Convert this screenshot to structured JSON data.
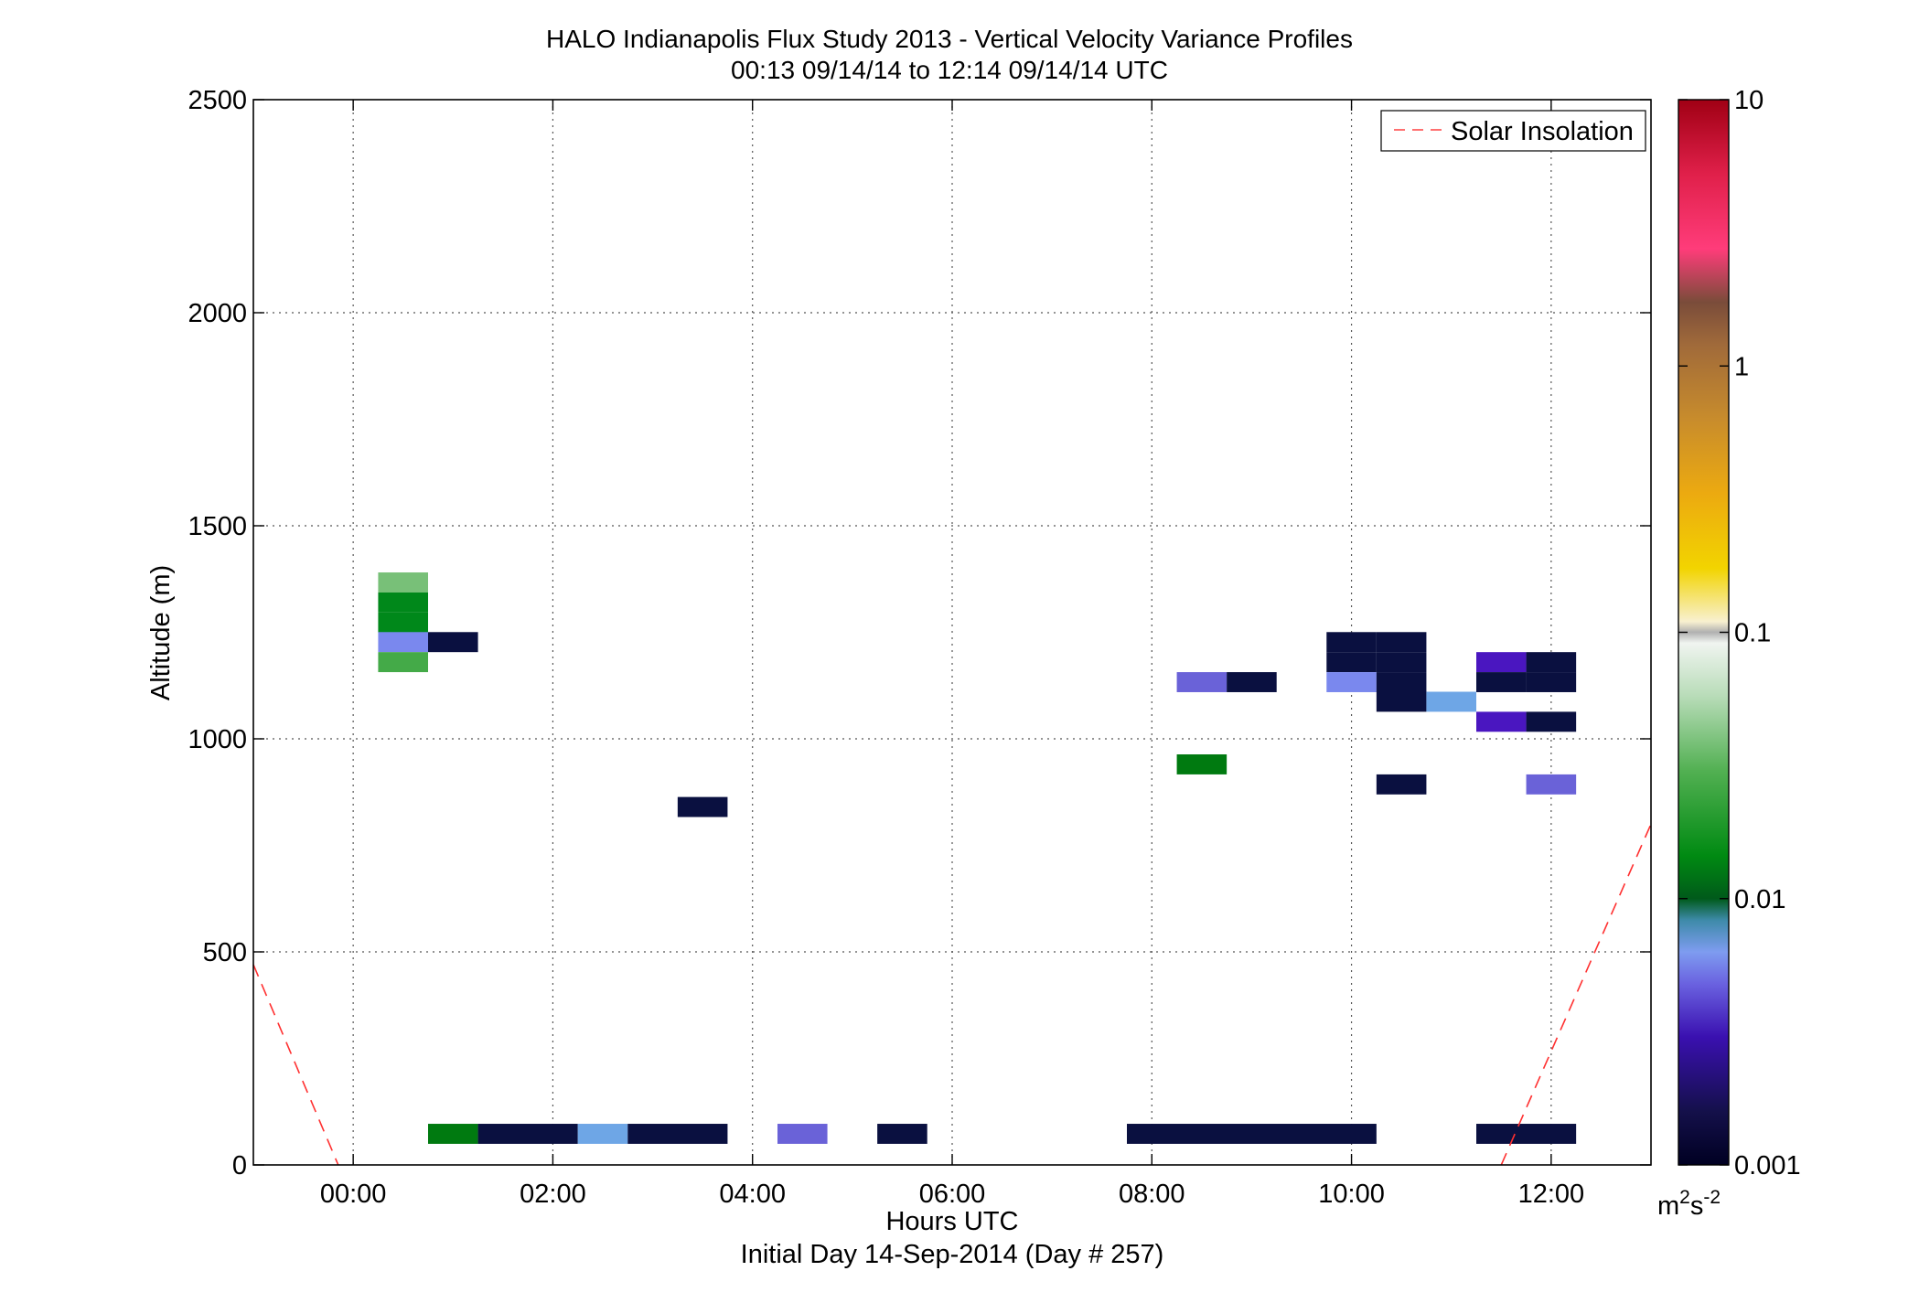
{
  "chart_data": {
    "type": "heatmap",
    "title": "HALO Indianapolis Flux Study 2013 - Vertical Velocity Variance Profiles",
    "subtitle": "00:13 09/14/14 to 12:14 09/14/14  UTC",
    "xlabel": "Hours UTC",
    "xlabel2": "Initial Day 14-Sep-2014 (Day # 257)",
    "ylabel": "Altitude (m)",
    "xlim": [
      -1.0,
      13.0
    ],
    "ylim": [
      0,
      2500
    ],
    "x_ticks": [
      0,
      2,
      4,
      6,
      8,
      10,
      12
    ],
    "x_tick_labels": [
      "00:00",
      "02:00",
      "04:00",
      "06:00",
      "08:00",
      "10:00",
      "12:00"
    ],
    "y_ticks": [
      0,
      500,
      1000,
      1500,
      2000,
      2500
    ],
    "y_tick_labels": [
      "0",
      "500",
      "1000",
      "1500",
      "2000",
      "2500"
    ],
    "grid": true,
    "legend": {
      "position": "top-right",
      "entries": [
        "Solar Insolation"
      ]
    },
    "colorbar": {
      "scale": "log",
      "range": [
        0.001,
        10
      ],
      "ticks": [
        0.001,
        0.01,
        0.1,
        1,
        10
      ],
      "tick_labels": [
        "0.001",
        "0.01",
        "0.1",
        "1",
        "10"
      ],
      "unit_base": "m",
      "unit_exp1": "2",
      "unit_mid": "s",
      "unit_exp2": "-2"
    },
    "cell_height_m": 47,
    "cells": [
      {
        "t0": 0.25,
        "t1": 0.75,
        "alt": 1367,
        "value": 0.05
      },
      {
        "t0": 0.25,
        "t1": 0.75,
        "alt": 1320,
        "value": 0.015
      },
      {
        "t0": 0.25,
        "t1": 0.75,
        "alt": 1273,
        "value": 0.015
      },
      {
        "t0": 0.25,
        "t1": 0.75,
        "alt": 1227,
        "value": 0.004
      },
      {
        "t0": 0.25,
        "t1": 0.75,
        "alt": 1180,
        "value": 0.03
      },
      {
        "t0": 0.75,
        "t1": 1.25,
        "alt": 1227,
        "value": 0.001
      },
      {
        "t0": 3.25,
        "t1": 3.75,
        "alt": 840,
        "value": 0.001
      },
      {
        "t0": 8.25,
        "t1": 8.75,
        "alt": 1133,
        "value": 0.003
      },
      {
        "t0": 8.75,
        "t1": 9.25,
        "alt": 1133,
        "value": 0.001
      },
      {
        "t0": 8.25,
        "t1": 8.75,
        "alt": 940,
        "value": 0.012
      },
      {
        "t0": 9.75,
        "t1": 10.25,
        "alt": 1227,
        "value": 0.001
      },
      {
        "t0": 9.75,
        "t1": 10.25,
        "alt": 1180,
        "value": 0.001
      },
      {
        "t0": 9.75,
        "t1": 10.25,
        "alt": 1133,
        "value": 0.004
      },
      {
        "t0": 10.25,
        "t1": 10.75,
        "alt": 1227,
        "value": 0.001
      },
      {
        "t0": 10.25,
        "t1": 10.75,
        "alt": 1180,
        "value": 0.001
      },
      {
        "t0": 10.25,
        "t1": 10.75,
        "alt": 1133,
        "value": 0.001
      },
      {
        "t0": 10.25,
        "t1": 10.75,
        "alt": 1087,
        "value": 0.001
      },
      {
        "t0": 10.75,
        "t1": 11.25,
        "alt": 1087,
        "value": 0.005
      },
      {
        "t0": 10.25,
        "t1": 10.75,
        "alt": 893,
        "value": 0.001
      },
      {
        "t0": 11.25,
        "t1": 11.75,
        "alt": 1180,
        "value": 0.002
      },
      {
        "t0": 11.75,
        "t1": 12.25,
        "alt": 1180,
        "value": 0.001
      },
      {
        "t0": 11.25,
        "t1": 11.75,
        "alt": 1133,
        "value": 0.001
      },
      {
        "t0": 11.75,
        "t1": 12.25,
        "alt": 1133,
        "value": 0.001
      },
      {
        "t0": 11.25,
        "t1": 11.75,
        "alt": 1040,
        "value": 0.002
      },
      {
        "t0": 11.75,
        "t1": 12.25,
        "alt": 1040,
        "value": 0.001
      },
      {
        "t0": 11.75,
        "t1": 12.25,
        "alt": 893,
        "value": 0.003
      },
      {
        "t0": 0.75,
        "t1": 1.25,
        "alt": 73,
        "value": 0.012
      },
      {
        "t0": 1.25,
        "t1": 2.25,
        "alt": 73,
        "value": 0.001
      },
      {
        "t0": 2.25,
        "t1": 2.75,
        "alt": 73,
        "value": 0.005
      },
      {
        "t0": 2.75,
        "t1": 3.75,
        "alt": 73,
        "value": 0.001
      },
      {
        "t0": 4.25,
        "t1": 4.75,
        "alt": 73,
        "value": 0.003
      },
      {
        "t0": 5.25,
        "t1": 5.75,
        "alt": 73,
        "value": 0.001
      },
      {
        "t0": 7.75,
        "t1": 10.25,
        "alt": 73,
        "value": 0.001
      },
      {
        "t0": 11.25,
        "t1": 12.25,
        "alt": 73,
        "value": 0.001
      }
    ],
    "series": [
      {
        "name": "Solar Insolation",
        "color": "#ff0000",
        "style": "dashed",
        "segments": [
          {
            "x": [
              -1.0,
              -0.15
            ],
            "y": [
              470,
              0
            ]
          },
          {
            "x": [
              11.5,
              13.0
            ],
            "y": [
              0,
              800
            ]
          }
        ]
      }
    ],
    "colors": {
      "v0_001": "#0a1040",
      "v0_002": "#4a16c0",
      "v0_003": "#6a62d8",
      "v0_004": "#7a88ee",
      "v0_005": "#6ea6e6",
      "v0_012": "#007a10",
      "v0_015": "#00881a",
      "v0_03": "#44aa48",
      "v0_05": "#78c078"
    }
  }
}
